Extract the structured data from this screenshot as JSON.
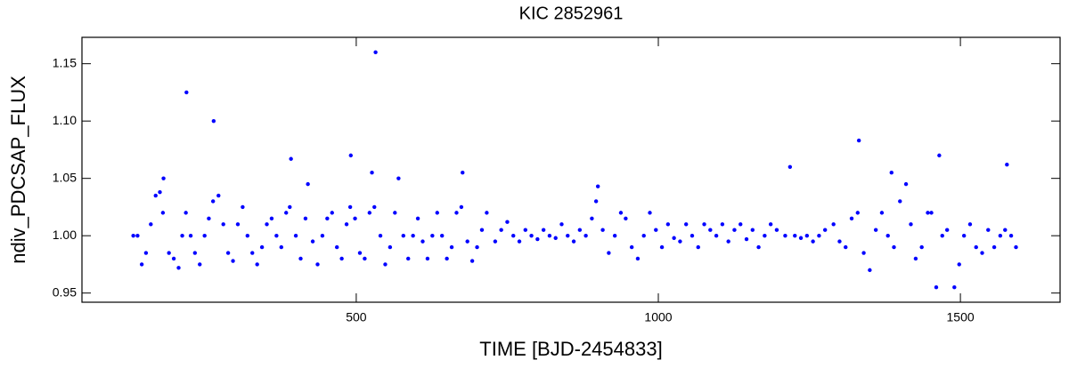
{
  "chart_data": {
    "type": "scatter",
    "title": "KIC 2852961",
    "x_label": "TIME [BJD-2454833]",
    "y_label": "ndiv_PDCSAP_FLUX",
    "color": "#0000ff",
    "x": [
      131,
      138,
      145,
      152,
      160,
      168,
      175,
      180,
      181,
      190,
      198,
      206,
      212,
      218,
      219,
      226,
      233,
      241,
      249,
      256,
      263,
      264,
      272,
      280,
      288,
      296,
      304,
      312,
      320,
      328,
      336,
      344,
      352,
      360,
      368,
      376,
      384,
      390,
      392,
      400,
      408,
      416,
      420,
      428,
      436,
      444,
      452,
      460,
      468,
      476,
      484,
      490,
      491,
      498,
      506,
      514,
      522,
      526,
      530,
      532,
      540,
      548,
      556,
      564,
      570,
      578,
      586,
      594,
      602,
      610,
      618,
      626,
      634,
      642,
      650,
      658,
      666,
      674,
      676,
      684,
      692,
      700,
      708,
      716,
      730,
      740,
      750,
      760,
      770,
      780,
      790,
      800,
      810,
      820,
      830,
      840,
      850,
      860,
      870,
      880,
      890,
      897,
      900,
      908,
      918,
      928,
      938,
      946,
      956,
      966,
      976,
      986,
      996,
      1006,
      1016,
      1026,
      1036,
      1046,
      1056,
      1066,
      1076,
      1086,
      1096,
      1106,
      1116,
      1126,
      1136,
      1146,
      1156,
      1166,
      1176,
      1186,
      1196,
      1210,
      1218,
      1226,
      1236,
      1246,
      1256,
      1266,
      1276,
      1290,
      1300,
      1310,
      1320,
      1330,
      1332,
      1340,
      1350,
      1360,
      1370,
      1380,
      1386,
      1390,
      1400,
      1410,
      1418,
      1426,
      1436,
      1446,
      1452,
      1460,
      1465,
      1470,
      1478,
      1490,
      1498,
      1506,
      1516,
      1526,
      1536,
      1546,
      1556,
      1566,
      1574,
      1577,
      1584,
      1592
    ],
    "values": [
      1.0,
      1.0,
      0.975,
      0.985,
      1.01,
      1.035,
      1.038,
      1.02,
      1.05,
      0.985,
      0.98,
      0.972,
      1.0,
      1.02,
      1.125,
      1.0,
      0.985,
      0.975,
      1.0,
      1.015,
      1.03,
      1.1,
      1.035,
      1.01,
      0.985,
      0.978,
      1.01,
      1.025,
      1.0,
      0.985,
      0.975,
      0.99,
      1.01,
      1.015,
      1.0,
      0.99,
      1.02,
      1.025,
      1.067,
      1.0,
      0.98,
      1.015,
      1.045,
      0.995,
      0.975,
      1.0,
      1.015,
      1.02,
      0.99,
      0.98,
      1.01,
      1.025,
      1.07,
      1.015,
      0.985,
      0.98,
      1.02,
      1.055,
      1.025,
      1.16,
      1.0,
      0.975,
      0.99,
      1.02,
      1.05,
      1.0,
      0.98,
      1.0,
      1.015,
      0.995,
      0.98,
      1.0,
      1.02,
      1.0,
      0.98,
      0.99,
      1.02,
      1.025,
      1.055,
      0.995,
      0.978,
      0.99,
      1.005,
      1.02,
      0.995,
      1.005,
      1.012,
      1.0,
      0.995,
      1.005,
      1.0,
      0.997,
      1.005,
      1.0,
      0.998,
      1.01,
      1.0,
      0.995,
      1.005,
      1.0,
      1.015,
      1.03,
      1.043,
      1.005,
      0.985,
      1.0,
      1.02,
      1.015,
      0.99,
      0.98,
      1.0,
      1.02,
      1.005,
      0.99,
      1.01,
      0.998,
      0.995,
      1.01,
      1.0,
      0.99,
      1.01,
      1.005,
      1.0,
      1.01,
      0.995,
      1.005,
      1.01,
      0.997,
      1.005,
      0.99,
      1.0,
      1.01,
      1.005,
      1.0,
      1.06,
      1.0,
      0.998,
      1.0,
      0.995,
      1.0,
      1.005,
      1.01,
      0.995,
      0.99,
      1.015,
      1.02,
      1.083,
      0.985,
      0.97,
      1.005,
      1.02,
      1.0,
      1.055,
      0.99,
      1.03,
      1.045,
      1.01,
      0.98,
      0.99,
      1.02,
      1.02,
      0.955,
      1.07,
      1.0,
      1.005,
      0.955,
      0.975,
      1.0,
      1.01,
      0.99,
      0.985,
      1.005,
      0.99,
      1.0,
      1.005,
      1.062,
      1.0,
      0.99
    ],
    "xlim": [
      46,
      1665
    ],
    "ylim": [
      0.942,
      1.173
    ],
    "xticks": [
      500,
      1000,
      1500
    ],
    "yticks": [
      0.95,
      {
        "value": 1.0,
        "label": "1.00"
      },
      1.05,
      {
        "value": 1.1,
        "label": "1.10"
      },
      1.15
    ]
  }
}
